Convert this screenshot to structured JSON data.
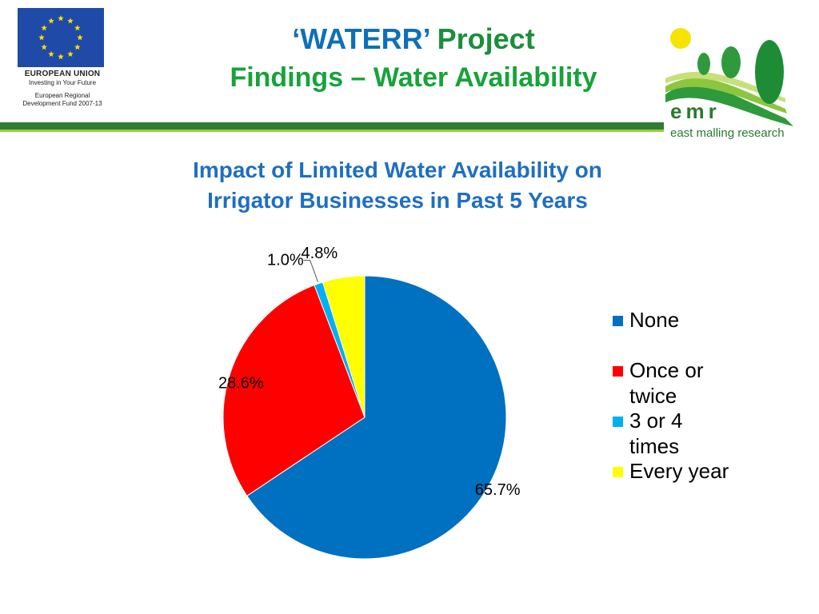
{
  "header": {
    "title_part1": "‘WATERR’",
    "title_part2": " Project",
    "title_line2": "Findings – Water Availability"
  },
  "eu_logo": {
    "line1": "EUROPEAN UNION",
    "line2": "Investing in Your Future",
    "line3": "European Regional",
    "line4": "Development Fund 2007-13"
  },
  "emr_logo": {
    "word": "emr",
    "subtitle": "east malling research"
  },
  "colors": {
    "title_blue": "#0e70b8",
    "title_green": "#17a33a",
    "chart_title": "#1f6fc0",
    "bar_dark_green": "#2e7d32",
    "bar_lime": "#9ccc39"
  },
  "chart_data": {
    "type": "pie",
    "title": "Impact of Limited Water Availability on Irrigator Businesses in Past 5 Years",
    "title_line1": "Impact of Limited Water Availability on",
    "title_line2": "Irrigator Businesses in Past 5 Years",
    "categories": [
      "None",
      "Once or twice",
      "3 or 4 times",
      "Every year"
    ],
    "legend_lines": [
      [
        "None"
      ],
      [
        "Once or",
        "twice"
      ],
      [
        "3 or 4",
        "times"
      ],
      [
        "Every year"
      ]
    ],
    "values": [
      65.7,
      28.6,
      1.0,
      4.8
    ],
    "labels": [
      "65.7%",
      "28.6%",
      "1.0%",
      "4.8%"
    ],
    "colors": [
      "#0070c0",
      "#ff0000",
      "#00b0f0",
      "#ffff00"
    ],
    "legend_position": "right"
  }
}
